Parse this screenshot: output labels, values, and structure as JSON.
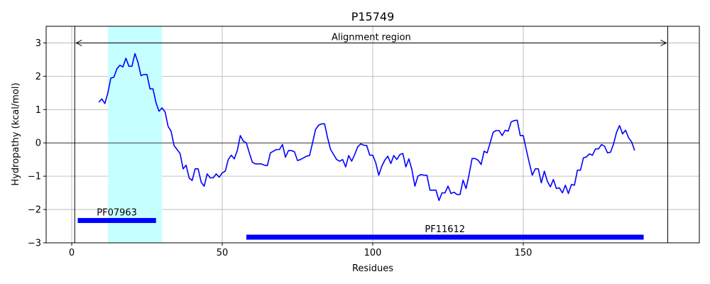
{
  "chart_data": {
    "type": "line",
    "title": "P15749",
    "xlabel": "Residues",
    "ylabel": "Hydropathy (kcal/mol)",
    "xlim": [
      -8.5,
      208.5
    ],
    "ylim": [
      -3,
      3.5
    ],
    "xticks": [
      0,
      50,
      100,
      150
    ],
    "yticks": [
      -3,
      -2,
      -1,
      0,
      1,
      2,
      3
    ],
    "grid": true,
    "colors": {
      "line": "#0000ff",
      "highlight": "#c6ffff",
      "domain": "#0000ff",
      "axis": "#000000",
      "grid": "#b0b0b0"
    },
    "series": [
      {
        "x": [
          9,
          10,
          11,
          12,
          13,
          14,
          15,
          16,
          17,
          18,
          19,
          20,
          21,
          22,
          23,
          24,
          25,
          26,
          27,
          28,
          29,
          30,
          31,
          32,
          33,
          34,
          35,
          36,
          37,
          38,
          39,
          40,
          41,
          42,
          43,
          44,
          45,
          46,
          47,
          48,
          49,
          50,
          51,
          52,
          53,
          54,
          55,
          56,
          57,
          58,
          59,
          60,
          61,
          62,
          63,
          64,
          65,
          66,
          67,
          68,
          69,
          70,
          71,
          72,
          73,
          74,
          75,
          76,
          77,
          78,
          79,
          80,
          81,
          82,
          83,
          84,
          85,
          86,
          87,
          88,
          89,
          90,
          91,
          92,
          93,
          94,
          95,
          96,
          97,
          98,
          99,
          100,
          101,
          102,
          103,
          104,
          105,
          106,
          107,
          108,
          109,
          110,
          111,
          112,
          113,
          114,
          115,
          116,
          117,
          118,
          119,
          120,
          121,
          122,
          123,
          124,
          125,
          126,
          127,
          128,
          129,
          130,
          131,
          132,
          133,
          134,
          135,
          136,
          137,
          138,
          139,
          140,
          141,
          142,
          143,
          144,
          145,
          146,
          147,
          148,
          149,
          150,
          151,
          152,
          153,
          154,
          155,
          156,
          157,
          158,
          159,
          160,
          161,
          162,
          163,
          164,
          165,
          166,
          167,
          168,
          169,
          170,
          171,
          172,
          173,
          174,
          175,
          176,
          177,
          178,
          179,
          180,
          181,
          182,
          183,
          184,
          185,
          186,
          187
        ],
        "y": [
          1.22,
          1.32,
          1.18,
          1.5,
          1.95,
          1.97,
          2.22,
          2.33,
          2.28,
          2.54,
          2.3,
          2.3,
          2.68,
          2.42,
          2.02,
          2.05,
          2.05,
          1.62,
          1.62,
          1.2,
          0.95,
          1.05,
          0.93,
          0.5,
          0.35,
          -0.08,
          -0.2,
          -0.32,
          -0.78,
          -0.67,
          -1.05,
          -1.13,
          -0.78,
          -0.78,
          -1.18,
          -1.3,
          -0.93,
          -1.05,
          -1.05,
          -0.93,
          -1.03,
          -0.9,
          -0.85,
          -0.5,
          -0.37,
          -0.48,
          -0.23,
          0.22,
          0.05,
          0.0,
          -0.3,
          -0.58,
          -0.63,
          -0.63,
          -0.63,
          -0.67,
          -0.68,
          -0.3,
          -0.25,
          -0.2,
          -0.2,
          -0.05,
          -0.43,
          -0.23,
          -0.23,
          -0.27,
          -0.53,
          -0.5,
          -0.45,
          -0.4,
          -0.38,
          0.0,
          0.4,
          0.53,
          0.57,
          0.57,
          0.15,
          -0.2,
          -0.35,
          -0.5,
          -0.55,
          -0.5,
          -0.72,
          -0.38,
          -0.55,
          -0.35,
          -0.12,
          -0.03,
          -0.07,
          -0.08,
          -0.37,
          -0.37,
          -0.6,
          -0.97,
          -0.7,
          -0.52,
          -0.4,
          -0.62,
          -0.38,
          -0.5,
          -0.35,
          -0.32,
          -0.72,
          -0.48,
          -0.8,
          -1.3,
          -1.0,
          -0.95,
          -0.97,
          -0.97,
          -1.42,
          -1.42,
          -1.42,
          -1.73,
          -1.5,
          -1.5,
          -1.3,
          -1.52,
          -1.48,
          -1.55,
          -1.55,
          -1.12,
          -1.37,
          -0.95,
          -0.47,
          -0.47,
          -0.52,
          -0.65,
          -0.25,
          -0.3,
          0.0,
          0.32,
          0.37,
          0.37,
          0.22,
          0.38,
          0.35,
          0.63,
          0.67,
          0.68,
          0.22,
          0.22,
          -0.2,
          -0.6,
          -0.97,
          -0.78,
          -0.78,
          -1.2,
          -0.85,
          -1.15,
          -1.32,
          -1.1,
          -1.37,
          -1.35,
          -1.5,
          -1.27,
          -1.52,
          -1.25,
          -1.27,
          -0.82,
          -0.82,
          -0.45,
          -0.42,
          -0.33,
          -0.37,
          -0.18,
          -0.18,
          -0.05,
          -0.1,
          -0.3,
          -0.28,
          -0.03,
          0.32,
          0.52,
          0.27,
          0.38,
          0.15,
          0.03,
          -0.23
        ]
      }
    ],
    "highlight_region": [
      12,
      30
    ],
    "vlines": [
      1,
      198
    ],
    "hline": 0,
    "alignment_arrow": {
      "label": "Alignment region",
      "x_start": 1,
      "x_end": 198,
      "y": 3.0
    },
    "domains": [
      {
        "label": "PF07963",
        "x_start": 2,
        "x_end": 28,
        "y": -2.33
      },
      {
        "label": "PF11612",
        "x_start": 58,
        "x_end": 190,
        "y": -2.83
      }
    ]
  }
}
